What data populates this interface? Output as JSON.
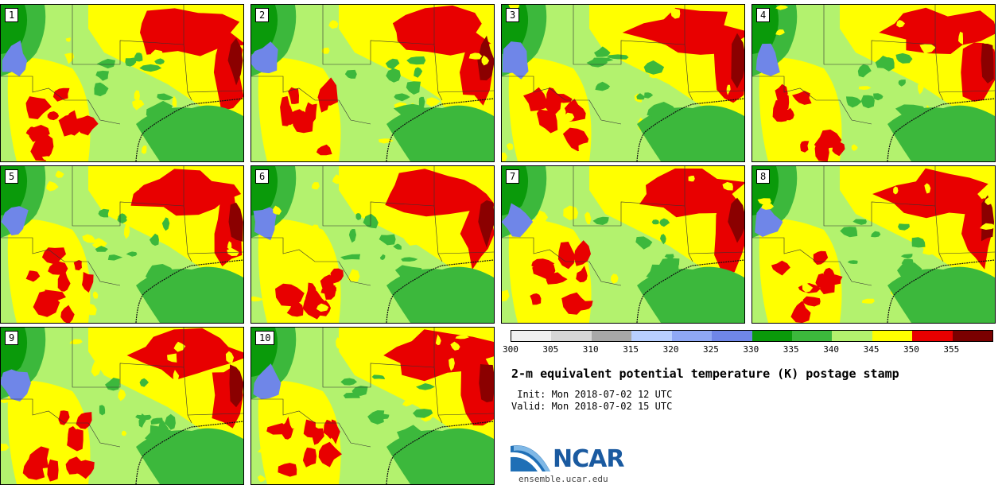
{
  "panels": [
    "1",
    "2",
    "3",
    "4",
    "5",
    "6",
    "7",
    "8",
    "9",
    "10"
  ],
  "colorbar": {
    "colors": [
      "#f0f0f0",
      "#d6d6d6",
      "#a8a8a8",
      "#b8cfff",
      "#8fa8f5",
      "#6f86e8",
      "#0a9a0a",
      "#3cb83c",
      "#b3f26e",
      "#ffff00",
      "#e80000",
      "#7a0000"
    ],
    "ticks": [
      "300",
      "305",
      "310",
      "315",
      "320",
      "325",
      "330",
      "335",
      "340",
      "345",
      "350",
      "355"
    ]
  },
  "title": "2-m equivalent potential temperature (K) postage stamp",
  "init_line": " Init: Mon 2018-07-02 12 UTC",
  "valid_line": "Valid: Mon 2018-07-02 15 UTC",
  "logo": {
    "name": "NCAR",
    "url": "ensemble.ucar.edu"
  }
}
